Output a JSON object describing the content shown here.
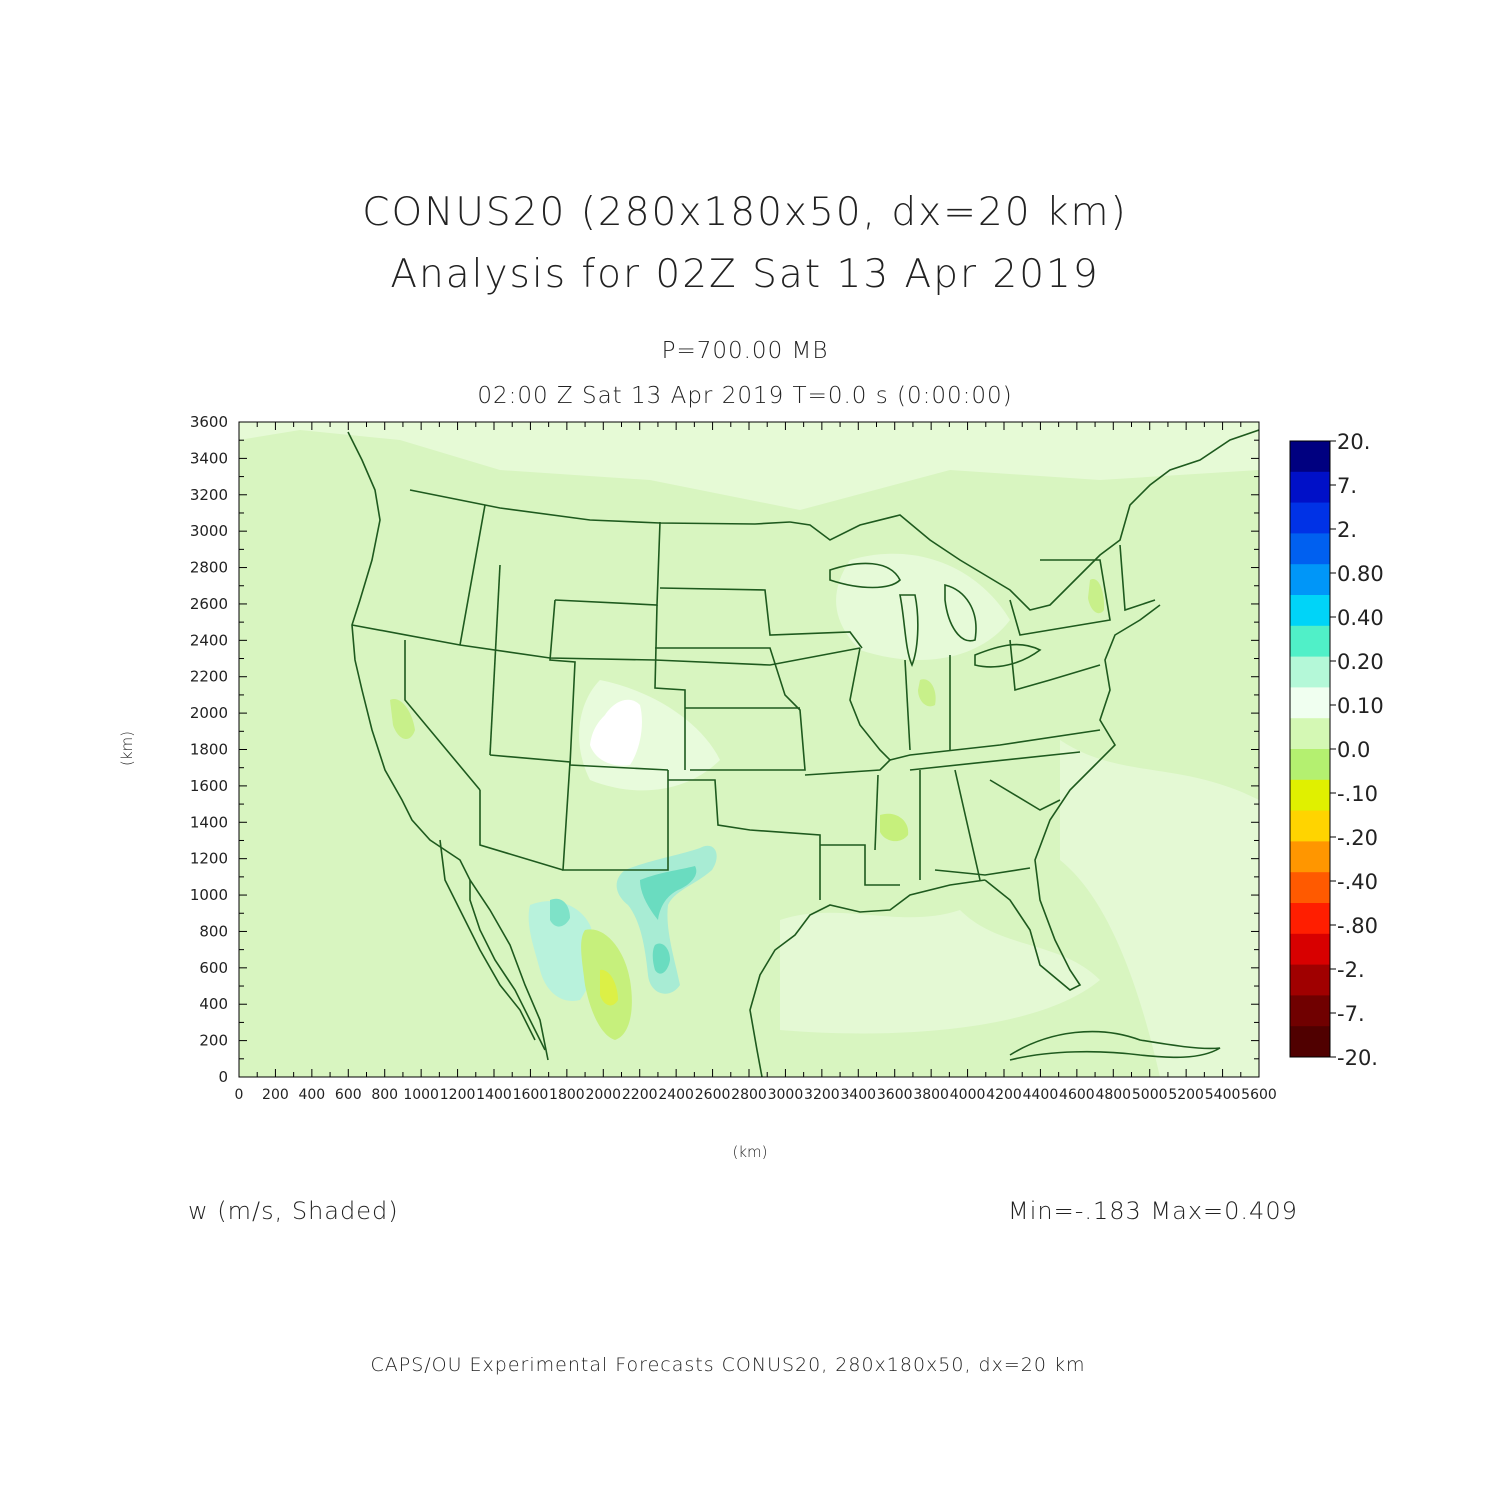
{
  "figure": {
    "title_line1": "CONUS20 (280x180x50, dx=20 km)",
    "title_line2": "Analysis for 02Z Sat 13 Apr 2019",
    "level": "P=700.00 MB",
    "time_line": "02:00 Z Sat 13 Apr 2019    T=0.0 s (0:00:00)",
    "x_axis_label": "(km)",
    "y_axis_label": "(km)",
    "variable_label": "w (m/s, Shaded)",
    "min_max": "Min=-.183 Max=0.409",
    "footer": "CAPS/OU Experimental Forecasts  CONUS20, 280x180x50, dx=20 km"
  },
  "axes": {
    "x_range": [
      0,
      5600
    ],
    "y_range": [
      0,
      3600
    ],
    "x_ticks": [
      "0",
      "200",
      "400",
      "600",
      "800",
      "1000",
      "1200",
      "1400",
      "1600",
      "1800",
      "2000",
      "2200",
      "2400",
      "2600",
      "2800",
      "3000",
      "3200",
      "3400",
      "3600",
      "3800",
      "4000",
      "4200",
      "4400",
      "4600",
      "4800",
      "5000",
      "5200",
      "5400",
      "5600"
    ],
    "y_ticks": [
      "0",
      "200",
      "400",
      "600",
      "800",
      "1000",
      "1200",
      "1400",
      "1600",
      "1800",
      "2000",
      "2200",
      "2400",
      "2600",
      "2800",
      "3000",
      "3200",
      "3400",
      "3600"
    ]
  },
  "colorbar": {
    "labels": [
      "20.",
      "7.",
      "2.",
      "0.80",
      "0.40",
      "0.20",
      "0.10",
      "0.0",
      "-.10",
      "-.20",
      "-.40",
      "-.80",
      "-2.",
      "-7.",
      "-20."
    ],
    "colors": [
      "#000080",
      "#0010c8",
      "#0032e6",
      "#0060f0",
      "#0096f8",
      "#00d4f8",
      "#50f0c8",
      "#b4f8d8",
      "#f0fff0",
      "#d4f8b4",
      "#b4f070",
      "#e0f000",
      "#ffd400",
      "#ff9600",
      "#ff5a00",
      "#ff1e00",
      "#d80000",
      "#a00000",
      "#700000",
      "#500000"
    ]
  },
  "map": {
    "background_color": "#d8f5c0",
    "boundary_color": "#1e5a1e"
  }
}
